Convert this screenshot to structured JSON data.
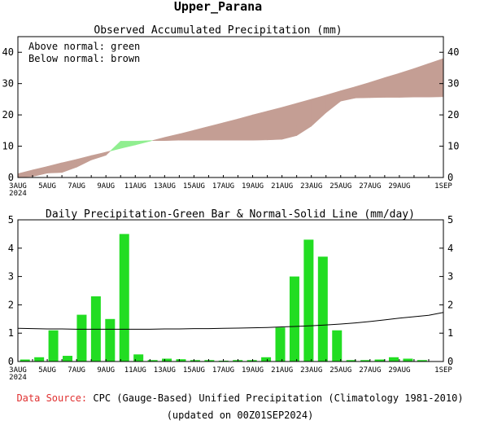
{
  "page": {
    "title": "Upper_Parana",
    "footer": {
      "source_label": "Data Source:",
      "source_text": "CPC (Gauge-Based) Unified Precipitation (Climatology 1981-2010)",
      "updated": "(updated on 00Z01SEP2024)"
    },
    "colors": {
      "above_normal": "#90ee90",
      "below_normal": "#c49e94",
      "bar": "#22dd22",
      "source_label": "#e03030"
    }
  },
  "chart_data": [
    {
      "type": "area",
      "title": "Observed Accumulated Precipitation (mm)",
      "legend": [
        "Above normal: green",
        "Below normal: brown"
      ],
      "legend_position": "top-left",
      "ylim": [
        0,
        45
      ],
      "yticks": [
        0,
        10,
        20,
        30,
        40
      ],
      "xticks": [
        "3AUG\n2024",
        "5AUG",
        "7AUG",
        "9AUG",
        "11AUG",
        "13AUG",
        "15AUG",
        "17AUG",
        "19AUG",
        "21AUG",
        "23AUG",
        "25AUG",
        "27AUG",
        "29AUG",
        "1SEP"
      ],
      "xtick_days": [
        0,
        2,
        4,
        6,
        8,
        10,
        12,
        14,
        16,
        18,
        20,
        22,
        24,
        26,
        29
      ],
      "x_days": [
        0,
        1,
        2,
        3,
        4,
        5,
        6,
        7,
        8,
        9,
        10,
        11,
        12,
        13,
        14,
        15,
        16,
        17,
        18,
        19,
        20,
        21,
        22,
        23,
        24,
        25,
        26,
        27,
        28,
        29
      ],
      "series": [
        {
          "name": "Observed",
          "values": [
            0.1,
            0.3,
            1.4,
            1.6,
            3.3,
            5.6,
            7.1,
            11.6,
            11.6,
            11.8,
            11.8,
            11.9,
            11.9,
            11.9,
            11.9,
            11.9,
            11.9,
            12.0,
            12.2,
            13.4,
            16.4,
            20.7,
            24.4,
            25.4,
            25.5,
            25.6,
            25.6,
            25.7,
            25.7,
            25.8
          ]
        },
        {
          "name": "Normal",
          "values": [
            1.2,
            2.4,
            3.5,
            4.7,
            5.8,
            7.0,
            8.1,
            9.3,
            10.4,
            11.6,
            12.8,
            13.9,
            15.1,
            16.3,
            17.5,
            18.7,
            20.0,
            21.2,
            22.4,
            23.7,
            25.0,
            26.3,
            27.7,
            29.0,
            30.4,
            31.9,
            33.3,
            34.8,
            36.4,
            38.0
          ]
        }
      ]
    },
    {
      "type": "bar",
      "title": "Daily Precipitation-Green Bar & Normal-Solid Line (mm/day)",
      "ylim": [
        0,
        5
      ],
      "yticks": [
        0,
        1,
        2,
        3,
        4,
        5
      ],
      "xticks": [
        "3AUG\n2024",
        "5AUG",
        "7AUG",
        "9AUG",
        "11AUG",
        "13AUG",
        "15AUG",
        "17AUG",
        "19AUG",
        "21AUG",
        "23AUG",
        "25AUG",
        "27AUG",
        "29AUG",
        "1SEP"
      ],
      "xtick_days": [
        0,
        2,
        4,
        6,
        8,
        10,
        12,
        14,
        16,
        18,
        20,
        22,
        24,
        26,
        29
      ],
      "x_days": [
        0,
        1,
        2,
        3,
        4,
        5,
        6,
        7,
        8,
        9,
        10,
        11,
        12,
        13,
        14,
        15,
        16,
        17,
        18,
        19,
        20,
        21,
        22,
        23,
        24,
        25,
        26,
        27,
        28,
        29
      ],
      "series": [
        {
          "name": "Daily Precipitation",
          "values": [
            0.07,
            0.15,
            1.1,
            0.2,
            1.65,
            2.3,
            1.5,
            4.5,
            0.25,
            0.05,
            0.1,
            0.08,
            0.05,
            0.05,
            0.03,
            0.05,
            0.05,
            0.15,
            1.2,
            3.0,
            4.3,
            3.7,
            1.1,
            0.05,
            0.05,
            0.07,
            0.15,
            0.1,
            0.05,
            0.0
          ]
        },
        {
          "name": "Normal",
          "values": [
            1.17,
            1.16,
            1.15,
            1.15,
            1.14,
            1.14,
            1.14,
            1.14,
            1.14,
            1.14,
            1.15,
            1.15,
            1.16,
            1.16,
            1.17,
            1.18,
            1.19,
            1.2,
            1.22,
            1.24,
            1.26,
            1.29,
            1.32,
            1.36,
            1.41,
            1.47,
            1.53,
            1.58,
            1.63,
            1.73
          ]
        }
      ]
    }
  ]
}
